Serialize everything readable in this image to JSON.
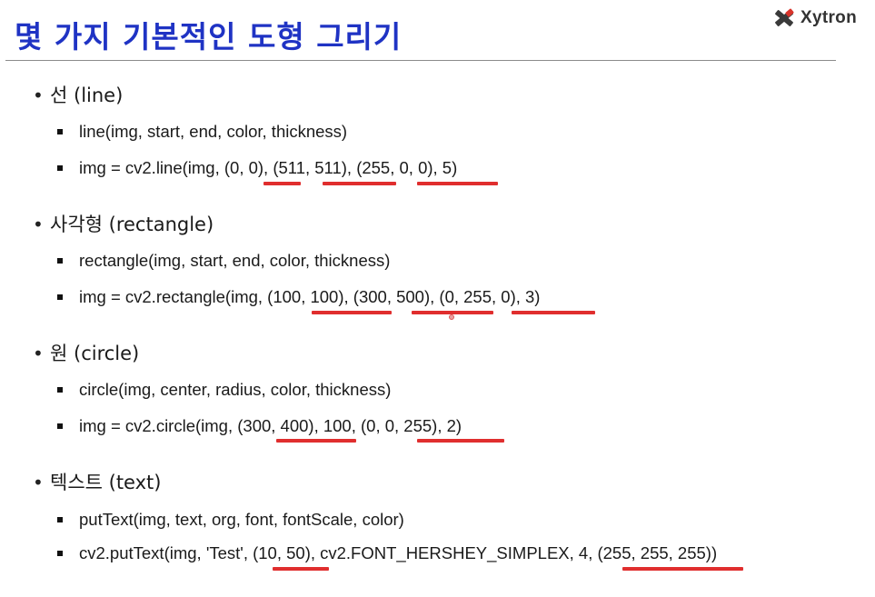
{
  "title": "몇 가지 기본적인 도형 그리기",
  "logo": {
    "text": "Xytron",
    "icon": "crossed-tools-icon",
    "colors": {
      "tool_dark": "#3a3a3a",
      "tool_red": "#d9342b"
    }
  },
  "colors": {
    "title": "#1f33c4",
    "underline": "#e02e2e"
  },
  "sections": [
    {
      "heading": "선 (line)",
      "signature": "line(img, start, end, color, thickness)",
      "example": "img = cv2.line(img, (0, 0), (511, 511), (255, 0, 0), 5)",
      "underlined": [
        "(0, 0)",
        "(511, 511)",
        "(255, 0, 0)"
      ]
    },
    {
      "heading": "사각형 (rectangle)",
      "signature": "rectangle(img, start, end, color, thickness)",
      "example": "img = cv2.rectangle(img, (100, 100), (300, 500), (0, 255, 0), 3)",
      "underlined": [
        "(100, 100)",
        "(300, 500)",
        "(0, 255, 0)"
      ]
    },
    {
      "heading": "원 (circle)",
      "signature": "circle(img, center, radius, color, thickness)",
      "example": "img = cv2.circle(img, (300, 400), 100, (0, 0, 255), 2)",
      "underlined": [
        "(300, 400)",
        "(0, 0, 255)"
      ]
    },
    {
      "heading": "텍스트 (text)",
      "signature": "putText(img, text, org, font, fontScale, color)",
      "example": "cv2.putText(img, 'Test', (10, 50), cv2.FONT_HERSHEY_SIMPLEX, 4, (255, 255, 255))",
      "underlined": [
        "(10, 50)",
        "(255, 255, 255)"
      ]
    }
  ]
}
